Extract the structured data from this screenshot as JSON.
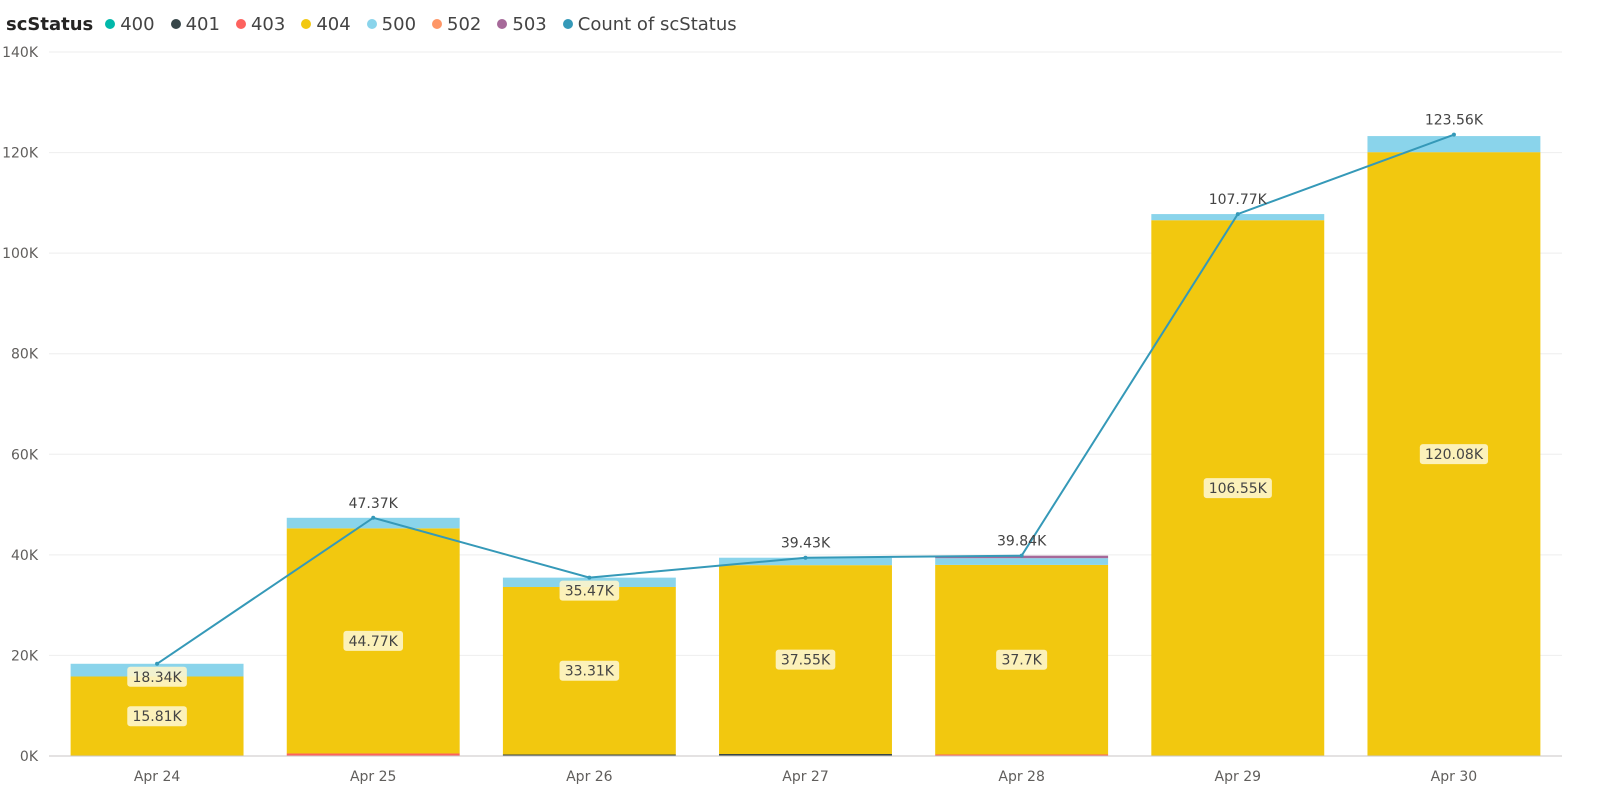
{
  "legend": {
    "title": "scStatus",
    "items": [
      {
        "label": "400",
        "color": "#01B8AA"
      },
      {
        "label": "401",
        "color": "#374649"
      },
      {
        "label": "403",
        "color": "#FD625E"
      },
      {
        "label": "404",
        "color": "#F2C80F"
      },
      {
        "label": "500",
        "color": "#8AD4EB"
      },
      {
        "label": "502",
        "color": "#FE9666"
      },
      {
        "label": "503",
        "color": "#A66999"
      },
      {
        "label": "Count of scStatus",
        "color": "#3599B8"
      }
    ]
  },
  "chart_data": {
    "type": "bar",
    "subtype": "stacked column with line",
    "categories": [
      "Apr 24",
      "Apr 25",
      "Apr 26",
      "Apr 27",
      "Apr 28",
      "Apr 29",
      "Apr 30"
    ],
    "ylim": [
      0,
      140000
    ],
    "y_ticks": [
      0,
      20000,
      40000,
      60000,
      80000,
      100000,
      120000,
      140000
    ],
    "y_tick_labels": [
      "0K",
      "20K",
      "40K",
      "60K",
      "80K",
      "100K",
      "120K",
      "140K"
    ],
    "grid": true,
    "legend_position": "top-left",
    "series": [
      {
        "name": "400",
        "color": "#01B8AA",
        "values": [
          0,
          0,
          0,
          0,
          0,
          0,
          0
        ]
      },
      {
        "name": "401",
        "color": "#374649",
        "values": [
          0,
          0,
          300,
          400,
          0,
          0,
          0
        ]
      },
      {
        "name": "403",
        "color": "#FD625E",
        "values": [
          0,
          500,
          0,
          0,
          300,
          0,
          0
        ]
      },
      {
        "name": "404",
        "color": "#F2C80F",
        "values": [
          15810,
          44770,
          33310,
          37550,
          37700,
          106550,
          120080
        ]
      },
      {
        "name": "500",
        "color": "#8AD4EB",
        "values": [
          2530,
          2100,
          1860,
          1480,
          1340,
          1220,
          3200
        ]
      },
      {
        "name": "502",
        "color": "#FE9666",
        "values": [
          0,
          0,
          0,
          0,
          0,
          0,
          0
        ]
      },
      {
        "name": "503",
        "color": "#A66999",
        "values": [
          0,
          0,
          0,
          0,
          500,
          0,
          0
        ]
      }
    ],
    "segment_labels": [
      {
        "category": "Apr 24",
        "series": "404",
        "text": "15.81K"
      },
      {
        "category": "Apr 25",
        "series": "404",
        "text": "44.77K"
      },
      {
        "category": "Apr 26",
        "series": "404",
        "text": "33.31K"
      },
      {
        "category": "Apr 27",
        "series": "404",
        "text": "37.55K"
      },
      {
        "category": "Apr 28",
        "series": "404",
        "text": "37.7K"
      },
      {
        "category": "Apr 29",
        "series": "404",
        "text": "106.55K"
      },
      {
        "category": "Apr 30",
        "series": "404",
        "text": "120.08K"
      }
    ],
    "line": {
      "name": "Count of scStatus",
      "color": "#3599B8",
      "values": [
        18340,
        47370,
        35470,
        39430,
        39840,
        107770,
        123560
      ],
      "labels": [
        "18.34K",
        "47.37K",
        "35.47K",
        "39.43K",
        "39.84K",
        "107.77K",
        "123.56K"
      ]
    }
  }
}
